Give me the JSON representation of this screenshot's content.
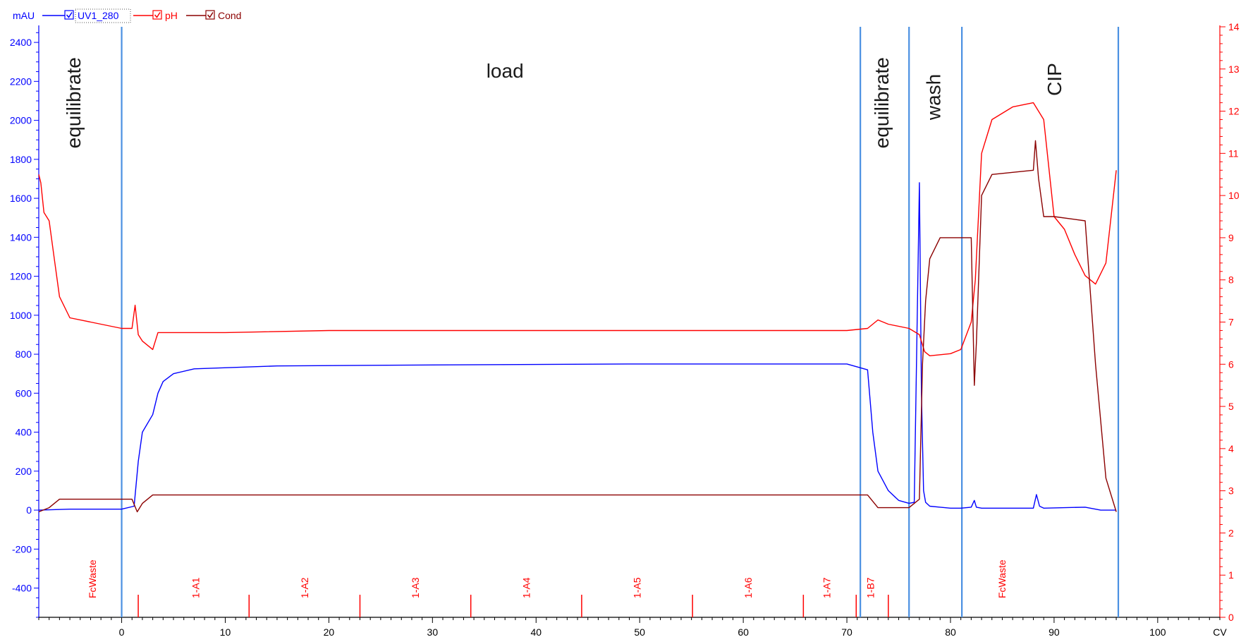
{
  "legend": {
    "y_unit": "mAU",
    "items": [
      {
        "name": "UV1_280",
        "color": "#0000ff",
        "checked": true
      },
      {
        "name": "pH",
        "color": "#ff0000",
        "checked": true
      },
      {
        "name": "Cond",
        "color": "#8b0000",
        "checked": true
      }
    ]
  },
  "chart_data": {
    "type": "line",
    "xlabel": "CV",
    "x_range": [
      -8,
      106
    ],
    "x_ticks": [
      0,
      10,
      20,
      30,
      40,
      50,
      60,
      70,
      80,
      90,
      100
    ],
    "ylabel_left": "mAU",
    "y_left_range": [
      -550,
      2480
    ],
    "y_left_ticks": [
      -400,
      -200,
      0,
      200,
      400,
      600,
      800,
      1000,
      1200,
      1400,
      1600,
      1800,
      2000,
      2200,
      2400
    ],
    "y_right_range": [
      0,
      14
    ],
    "y_right_ticks": [
      0,
      1,
      2,
      3,
      4,
      5,
      6,
      7,
      8,
      9,
      10,
      11,
      12,
      13,
      14
    ],
    "colors": {
      "uv": "#0000ff",
      "ph": "#ff0000",
      "cond": "#8b0000",
      "divider": "#4a90e2",
      "fraction": "#ff0000"
    },
    "series": [
      {
        "name": "UV1_280",
        "axis": "left",
        "x": [
          -8,
          -5,
          0,
          1.2,
          1.6,
          2,
          3,
          3.5,
          4,
          5,
          7,
          15,
          30,
          50,
          70,
          72,
          72.5,
          73,
          74,
          75,
          76,
          76.5,
          77,
          77.2,
          77.4,
          77.6,
          78,
          79,
          80,
          81,
          82,
          82.3,
          82.5,
          83,
          88,
          88.3,
          88.6,
          89,
          93,
          94.5,
          96
        ],
        "y": [
          0,
          5,
          5,
          20,
          250,
          400,
          490,
          600,
          660,
          700,
          725,
          740,
          745,
          750,
          750,
          720,
          400,
          200,
          100,
          50,
          35,
          40,
          1680,
          600,
          100,
          40,
          20,
          15,
          10,
          10,
          15,
          50,
          15,
          10,
          10,
          80,
          20,
          10,
          15,
          0,
          0
        ]
      },
      {
        "name": "pH",
        "axis": "right",
        "x": [
          -8,
          -7.8,
          -7.5,
          -7,
          -6.5,
          -6,
          -5,
          -3,
          0,
          1,
          1.3,
          1.6,
          2,
          3,
          3.5,
          5,
          10,
          20,
          40,
          60,
          70,
          72,
          73,
          74,
          76,
          77,
          77.5,
          78,
          80,
          81,
          82,
          82.4,
          83,
          84,
          86,
          88,
          89,
          90,
          91,
          92,
          93,
          94,
          95,
          96
        ],
        "y": [
          10.5,
          10.3,
          9.6,
          9.4,
          8.5,
          7.6,
          7.1,
          7.0,
          6.85,
          6.85,
          7.4,
          6.7,
          6.55,
          6.35,
          6.75,
          6.75,
          6.75,
          6.8,
          6.8,
          6.8,
          6.8,
          6.85,
          7.05,
          6.95,
          6.85,
          6.7,
          6.3,
          6.2,
          6.25,
          6.35,
          7.0,
          8.0,
          11.0,
          11.8,
          12.1,
          12.2,
          11.8,
          9.5,
          9.2,
          8.6,
          8.1,
          7.9,
          8.4,
          10.6
        ]
      },
      {
        "name": "Cond",
        "axis": "right",
        "x": [
          -8,
          -7,
          -6,
          -5,
          0,
          1,
          1.5,
          2,
          3,
          5,
          71,
          72,
          73,
          75,
          76,
          77,
          77.3,
          77.6,
          78,
          79,
          81,
          82,
          82.3,
          82.5,
          83,
          84,
          86,
          88,
          88.2,
          88.5,
          89,
          90,
          93,
          94,
          95,
          96
        ],
        "y": [
          2.5,
          2.6,
          2.8,
          2.8,
          2.8,
          2.8,
          2.5,
          2.7,
          2.9,
          2.9,
          2.9,
          2.9,
          2.6,
          2.6,
          2.6,
          2.8,
          6.0,
          7.5,
          8.5,
          9.0,
          9.0,
          9.0,
          5.5,
          6.5,
          10.0,
          10.5,
          10.55,
          10.6,
          11.3,
          10.4,
          9.5,
          9.5,
          9.4,
          6.0,
          3.3,
          2.5
        ]
      }
    ],
    "phase_dividers": [
      0,
      71.3,
      76,
      81.1,
      96.2
    ],
    "phases": [
      {
        "label": "equilibrate",
        "x": -4.5,
        "y": 2090,
        "orientation": "vertical"
      },
      {
        "label": "load",
        "x": 37,
        "y": 2220,
        "orientation": "horizontal"
      },
      {
        "label": "equilibrate",
        "x": 73.5,
        "y": 2090,
        "orientation": "vertical"
      },
      {
        "label": "wash",
        "x": 78.5,
        "y": 2120,
        "orientation": "vertical"
      },
      {
        "label": "CIP",
        "x": 90.2,
        "y": 2210,
        "orientation": "vertical"
      }
    ],
    "fractions": {
      "marks": [
        1.6,
        12.3,
        23,
        33.7,
        44.4,
        55.1,
        65.8,
        70.9,
        74
      ],
      "labels": [
        {
          "label": "FcWaste",
          "x": -2.5
        },
        {
          "label": "1-A1",
          "x": 7.5
        },
        {
          "label": "1-A2",
          "x": 18
        },
        {
          "label": "1-A3",
          "x": 28.7
        },
        {
          "label": "1-A4",
          "x": 39.4
        },
        {
          "label": "1-A5",
          "x": 50.1
        },
        {
          "label": "1-A6",
          "x": 60.8
        },
        {
          "label": "1-A7",
          "x": 68.4
        },
        {
          "label": "1-B7",
          "x": 72.6
        },
        {
          "label": "FcWaste",
          "x": 85.3
        }
      ]
    }
  }
}
